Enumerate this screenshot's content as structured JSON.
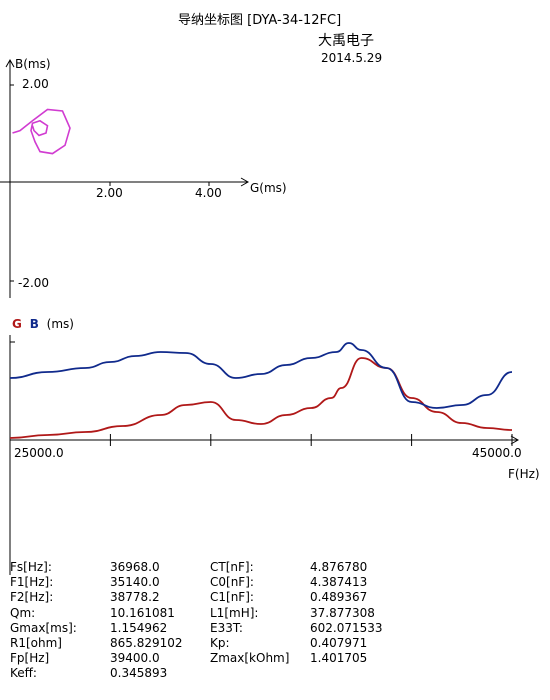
{
  "header": {
    "title": "导纳坐标图 [DYA-34-12FC]",
    "company": "大禹电子",
    "date": "2014.5.29"
  },
  "colors": {
    "circle": "#d13cd1",
    "g_curve": "#b01818",
    "b_curve": "#102a8c",
    "axis": "#000000"
  },
  "chart_data": [
    {
      "type": "scatter",
      "name": "admittance-circle",
      "xlabel": "G(ms)",
      "ylabel": "B(ms)",
      "xticks": [
        "2.00",
        "4.00"
      ],
      "yticks": [
        "2.00",
        "-2.00"
      ],
      "xlim": [
        -0.45,
        4.8
      ],
      "ylim": [
        -2.45,
        2.45
      ],
      "points": [
        [
          0.05,
          1.0
        ],
        [
          0.2,
          1.05
        ],
        [
          0.45,
          1.25
        ],
        [
          0.75,
          1.48
        ],
        [
          1.05,
          1.45
        ],
        [
          1.2,
          1.1
        ],
        [
          1.1,
          0.75
        ],
        [
          0.85,
          0.58
        ],
        [
          0.6,
          0.62
        ],
        [
          0.5,
          0.82
        ],
        [
          0.42,
          1.05
        ],
        [
          0.45,
          1.2
        ],
        [
          0.6,
          1.25
        ],
        [
          0.75,
          1.15
        ],
        [
          0.72,
          1.0
        ],
        [
          0.58,
          0.95
        ],
        [
          0.48,
          1.05
        ],
        [
          0.45,
          1.15
        ]
      ]
    },
    {
      "type": "line",
      "name": "frequency-sweep",
      "ylabel_g": "G",
      "ylabel_b": "B",
      "ylabel_unit": "(ms)",
      "xlabel": "F(Hz)",
      "xlim": [
        25000,
        45000
      ],
      "ylim": [
        0,
        1
      ],
      "x_start_label": "25000.0",
      "x_end_label": "45000.0",
      "series": [
        {
          "name": "G",
          "x": [
            25000,
            26500,
            28000,
            29500,
            31000,
            32000,
            33000,
            34000,
            35000,
            36000,
            37000,
            37800,
            38200,
            39000,
            40000,
            41000,
            42000,
            43000,
            44000,
            45000
          ],
          "values": [
            0.02,
            0.05,
            0.08,
            0.14,
            0.25,
            0.35,
            0.38,
            0.2,
            0.16,
            0.25,
            0.32,
            0.42,
            0.52,
            0.82,
            0.72,
            0.42,
            0.28,
            0.17,
            0.12,
            0.1
          ]
        },
        {
          "name": "B",
          "x": [
            25000,
            26500,
            28000,
            29000,
            30000,
            31000,
            32000,
            33000,
            34000,
            35000,
            36000,
            37000,
            38000,
            38500,
            39000,
            40000,
            41000,
            42000,
            43000,
            44000,
            45000
          ],
          "values": [
            0.62,
            0.68,
            0.72,
            0.78,
            0.84,
            0.88,
            0.87,
            0.76,
            0.62,
            0.66,
            0.75,
            0.82,
            0.88,
            0.97,
            0.9,
            0.72,
            0.38,
            0.32,
            0.35,
            0.45,
            0.68
          ]
        }
      ]
    }
  ],
  "params": [
    [
      "Fs[Hz]:",
      "36968.0",
      "CT[nF]:",
      "4.876780"
    ],
    [
      "F1[Hz]:",
      "35140.0",
      "C0[nF]:",
      "4.387413"
    ],
    [
      "F2[Hz]:",
      "38778.2",
      "C1[nF]:",
      "0.489367"
    ],
    [
      "Qm:",
      "10.161081",
      "L1[mH]:",
      "37.877308"
    ],
    [
      "Gmax[ms]:",
      "1.154962",
      "E33T:",
      "602.071533"
    ],
    [
      "R1[ohm]",
      "865.829102",
      "Kp:",
      "0.407971"
    ],
    [
      "Fp[Hz]",
      "39400.0",
      "Zmax[kOhm]",
      "1.401705"
    ],
    [
      "Keff:",
      "0.345893",
      "",
      ""
    ]
  ]
}
